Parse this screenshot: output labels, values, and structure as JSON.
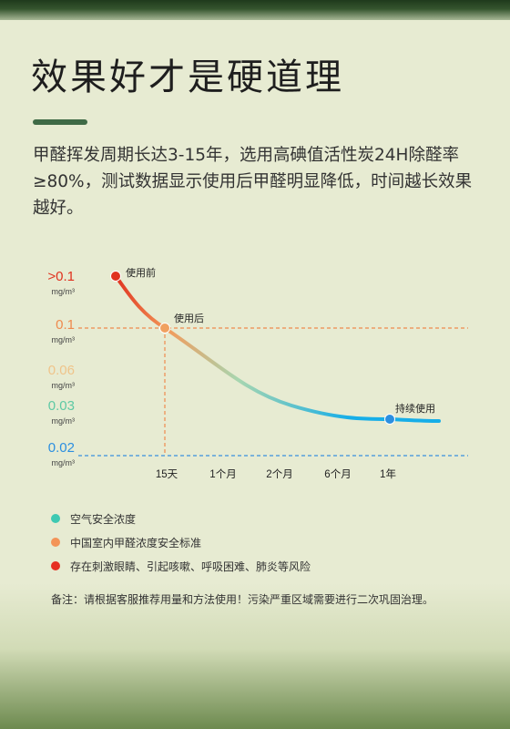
{
  "header": {
    "title": "效果好才是硬道理",
    "description": "甲醛挥发周期长达3-15年，选用高碘值活性炭24H除醛率≥80%，测试数据显示使用后甲醛明显降低，时间越长效果越好。"
  },
  "chart_data": {
    "type": "line",
    "x_ticks": [
      "15天",
      "1个月",
      "2个月",
      "6个月",
      "1年"
    ],
    "y_ticks": [
      {
        "label": ">0.1",
        "unit": "mg/m³",
        "color": "#e0321f"
      },
      {
        "label": "0.1",
        "unit": "mg/m³",
        "color": "#ef8a4e"
      },
      {
        "label": "0.06",
        "unit": "mg/m³",
        "color": "#efc48a"
      },
      {
        "label": "0.03",
        "unit": "mg/m³",
        "color": "#5ec9a4"
      },
      {
        "label": "0.02",
        "unit": "mg/m³",
        "color": "#2c8fe0"
      }
    ],
    "reference_lines": [
      {
        "value": 0.1,
        "color": "#ef8a4e"
      },
      {
        "value": 0.02,
        "color": "#3a8fe0"
      }
    ],
    "annotations": [
      {
        "label": "使用前",
        "color": "#e0321f"
      },
      {
        "label": "使用后",
        "color": "#f0a060"
      },
      {
        "label": "持续使用",
        "color": "#2c8fe0"
      }
    ],
    "gradient_colors": [
      "#e0321f",
      "#f39a5a",
      "#a7d6b0",
      "#17aee8"
    ]
  },
  "legend": {
    "items": [
      {
        "label": "空气安全浓度",
        "color": "#3ec9b2"
      },
      {
        "label": "中国室内甲醛浓度安全标准",
        "color": "#f39458"
      },
      {
        "label": "存在刺激眼睛、引起咳嗽、呼吸困难、肺炎等风险",
        "color": "#e62e22"
      }
    ]
  },
  "footer": {
    "note": "备注：请根据客服推荐用量和方法使用！污染严重区域需要进行二次巩固治理。"
  }
}
